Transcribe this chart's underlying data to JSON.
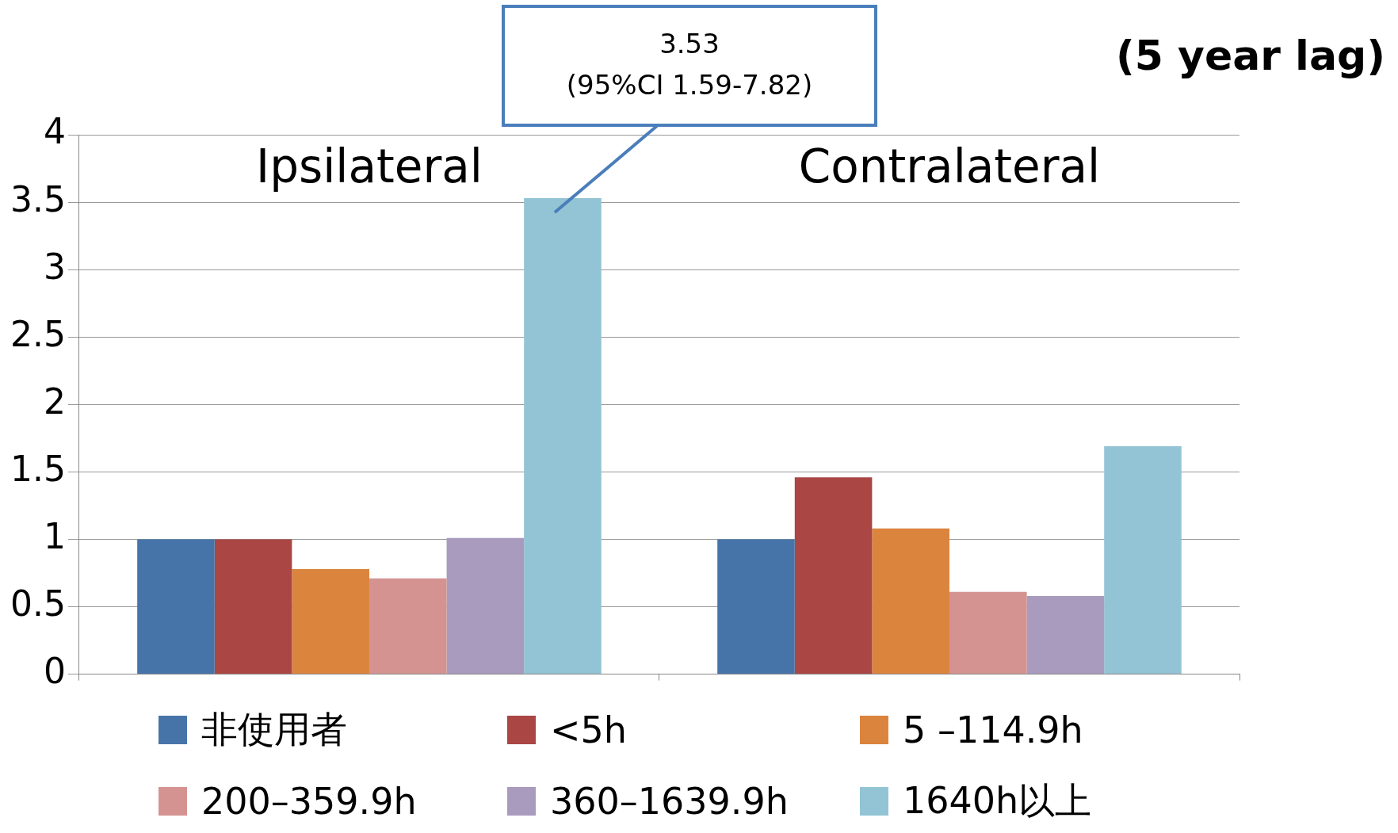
{
  "chart_data": {
    "type": "bar",
    "title": "(5 year lag)",
    "categories": [
      "Ipsilateral",
      "Contralateral"
    ],
    "series": [
      {
        "name": "非使用者",
        "color": "#4674a9",
        "values": [
          1.0,
          1.0
        ]
      },
      {
        "name": "<5h",
        "color": "#aa4644",
        "values": [
          1.0,
          1.46
        ]
      },
      {
        "name": "5 –114.9h",
        "color": "#db843d",
        "values": [
          0.78,
          1.08
        ]
      },
      {
        "name": "200–359.9h",
        "color": "#d49391",
        "values": [
          0.71,
          0.61
        ]
      },
      {
        "name": "360–1639.9h",
        "color": "#a99bbd",
        "values": [
          1.01,
          0.58
        ]
      },
      {
        "name": "1640h以上",
        "color": "#93c4d5",
        "values": [
          3.53,
          1.69
        ]
      }
    ],
    "annotations": [
      "3.53\n(95%CI 1.59-7.82)"
    ],
    "ylim": [
      0,
      4
    ],
    "yticks": [
      0,
      0.5,
      1,
      1.5,
      2,
      2.5,
      3,
      3.5,
      4
    ],
    "grid": "y",
    "legend": "bottom"
  }
}
